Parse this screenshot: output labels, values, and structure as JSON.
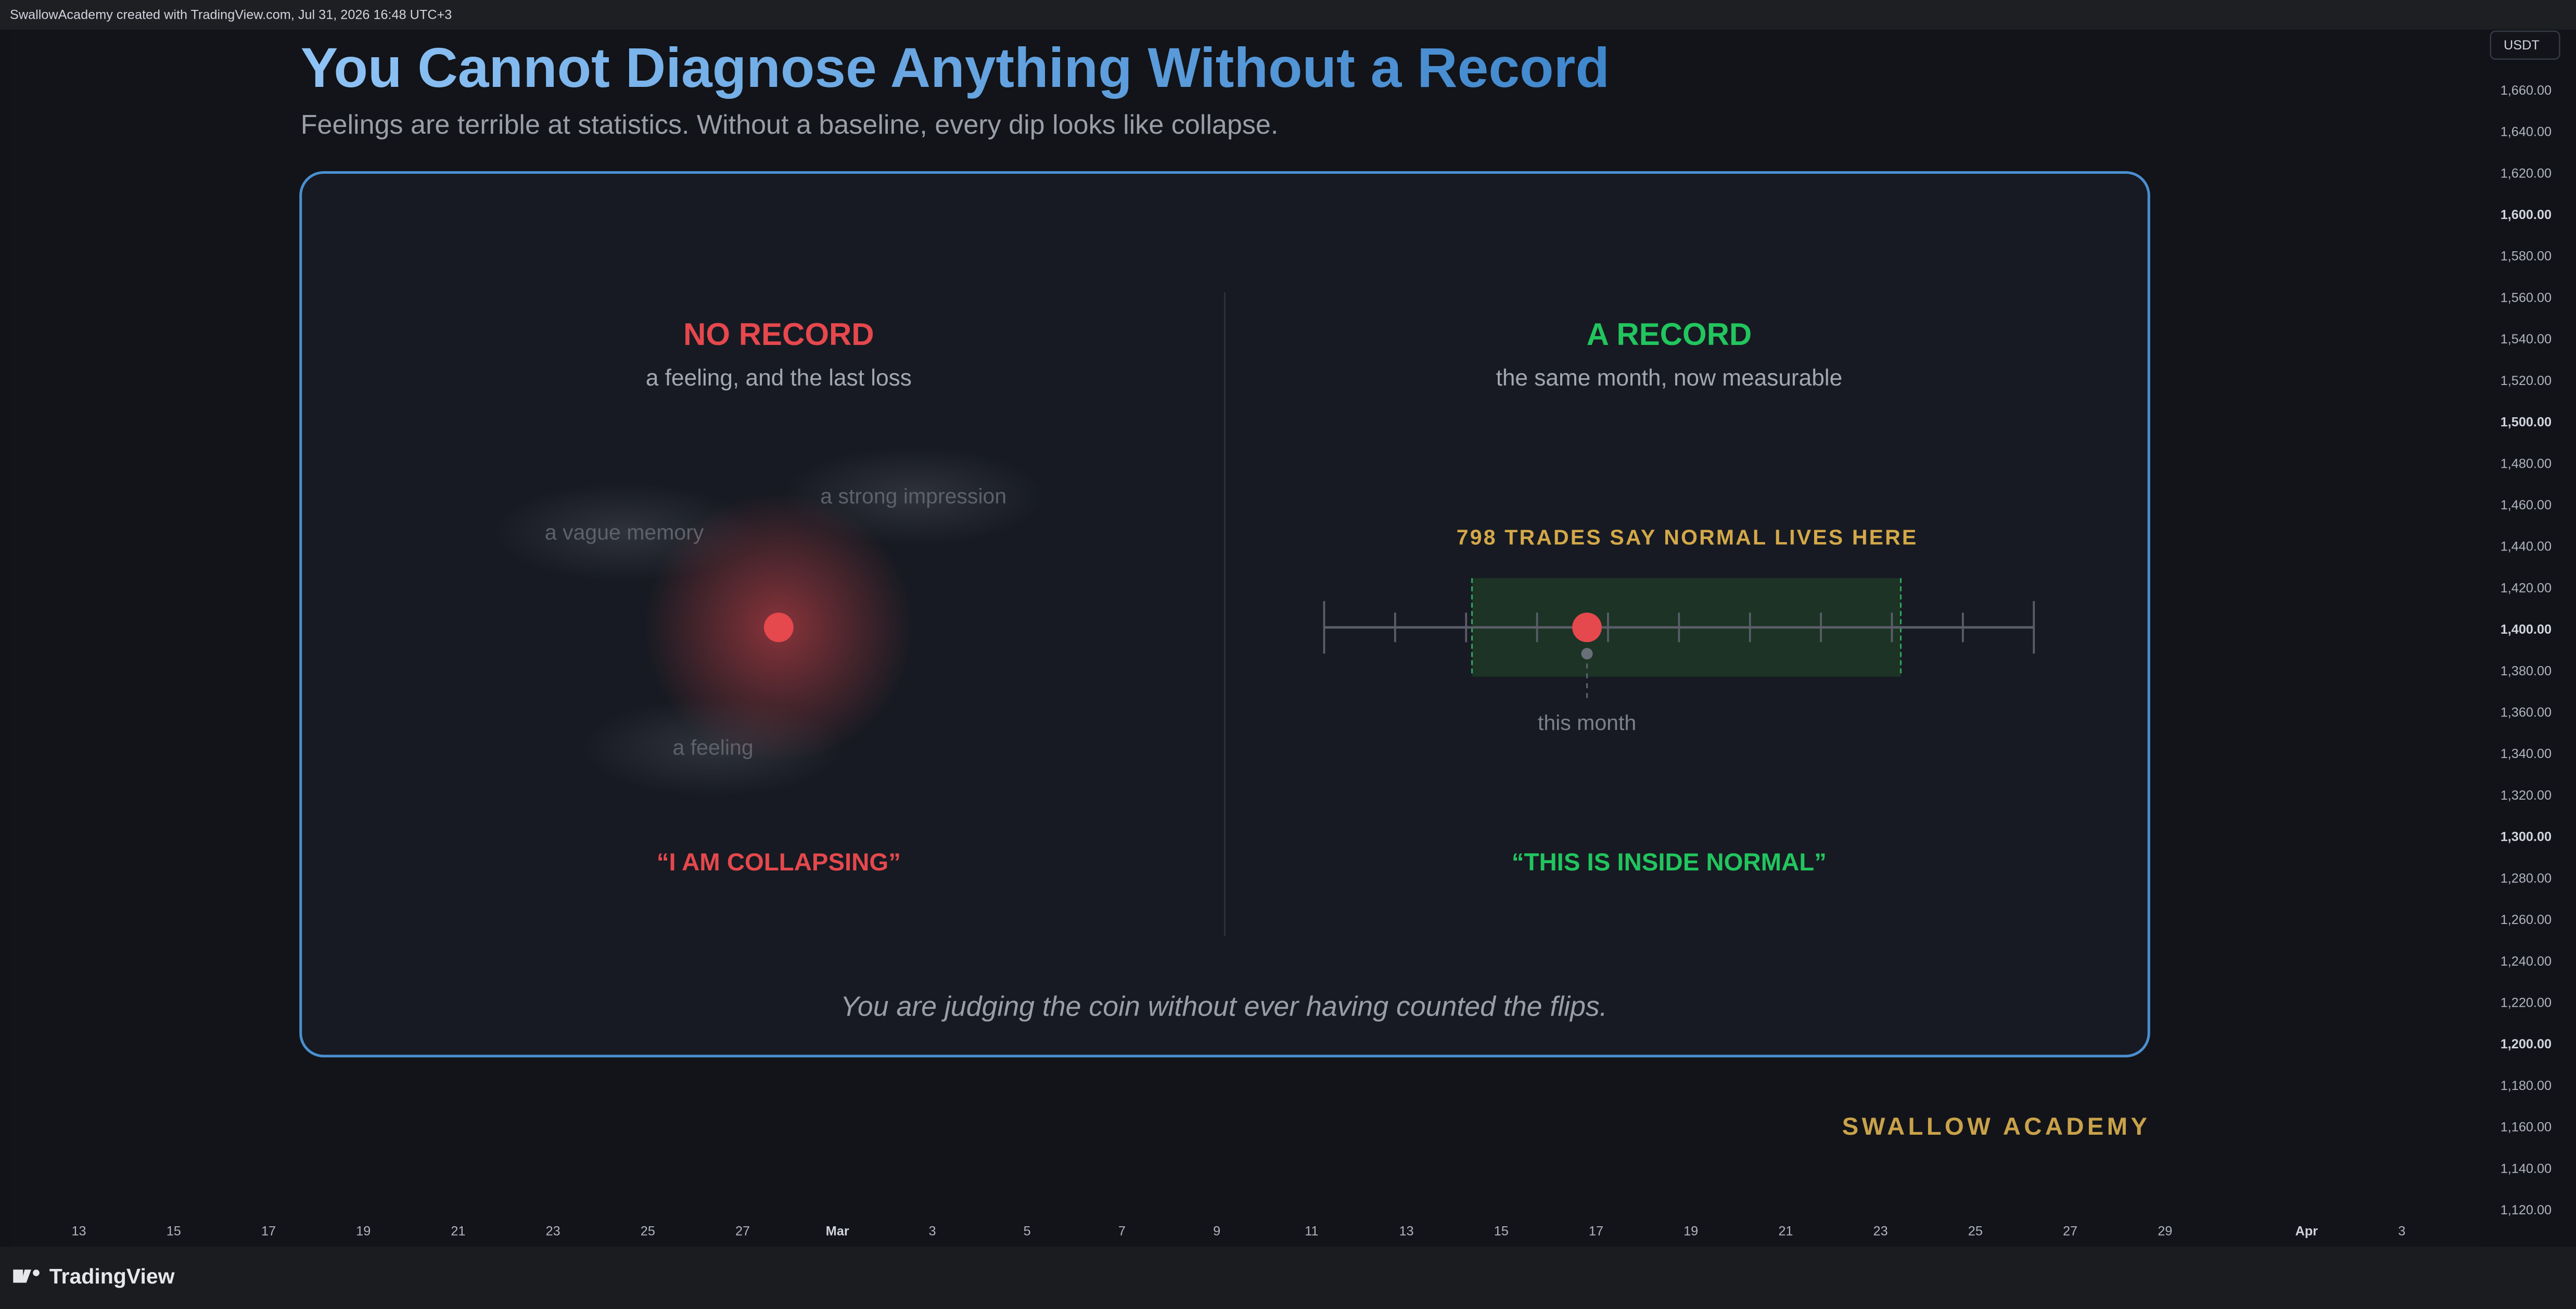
{
  "header": {
    "attribution": "SwallowAcademy created with TradingView.com, Jul 31, 2026 16:48 UTC+3"
  },
  "currency": "USDT",
  "price_axis": [
    "1,660.00",
    "1,640.00",
    "1,620.00",
    "1,600.00",
    "1,580.00",
    "1,560.00",
    "1,540.00",
    "1,520.00",
    "1,500.00",
    "1,480.00",
    "1,460.00",
    "1,440.00",
    "1,420.00",
    "1,400.00",
    "1,380.00",
    "1,360.00",
    "1,340.00",
    "1,320.00",
    "1,300.00",
    "1,280.00",
    "1,260.00",
    "1,240.00",
    "1,220.00",
    "1,200.00",
    "1,180.00",
    "1,160.00",
    "1,140.00",
    "1,120.00"
  ],
  "time_axis": [
    "13",
    "15",
    "17",
    "19",
    "21",
    "23",
    "25",
    "27",
    "Mar",
    "3",
    "5",
    "7",
    "9",
    "11",
    "13",
    "15",
    "17",
    "19",
    "21",
    "23",
    "25",
    "27",
    "29",
    "Apr",
    "3"
  ],
  "title": "You Cannot Diagnose Anything Without a Record",
  "subtitle": "Feelings are terrible at statistics. Without a baseline, every dip looks like collapse.",
  "left": {
    "heading": "NO RECORD",
    "subheading": "a feeling, and the last loss",
    "fragments": [
      "a vague memory",
      "a strong impression",
      "a feeling"
    ],
    "verdict": "“I AM COLLAPSING”"
  },
  "right": {
    "heading": "A RECORD",
    "subheading": "the same month, now measurable",
    "band_label": "798 TRADES SAY NORMAL LIVES HERE",
    "marker_label": "this month",
    "verdict": "“THIS IS INSIDE NORMAL”"
  },
  "caption": "You are judging the coin without ever having counted the flips.",
  "brand": "SWALLOW ACADEMY",
  "logo": "TradingView"
}
